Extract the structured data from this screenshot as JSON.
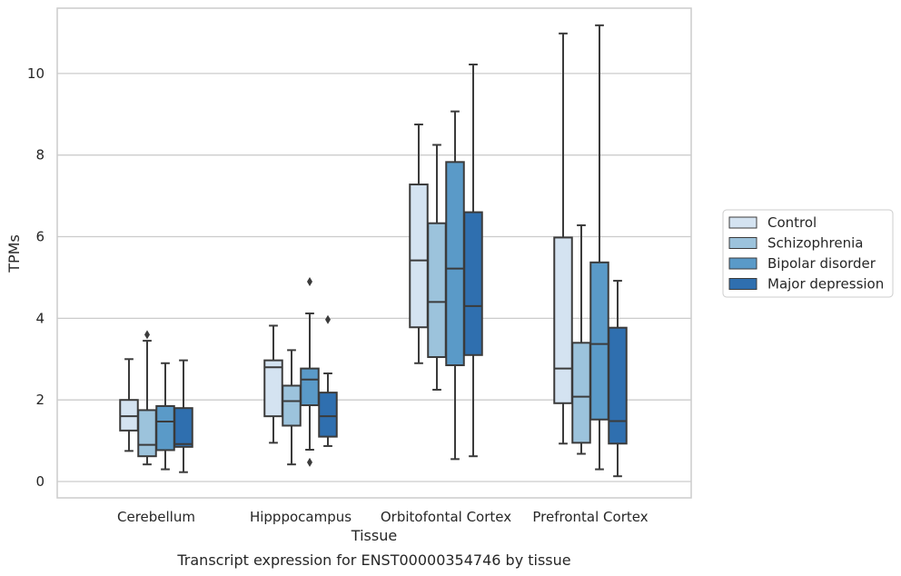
{
  "chart_data": {
    "type": "boxplot",
    "title": "",
    "caption": "Transcript expression for ENST00000354746 by tissue",
    "xlabel": "Tissue",
    "ylabel": "TPMs",
    "ylim": [
      -0.4,
      11.6
    ],
    "yticks": [
      0,
      2,
      4,
      6,
      8,
      10
    ],
    "grid": "horizontal",
    "legend_position": "right",
    "categories": [
      "Cerebellum",
      "Hipppocampus",
      "Orbitofontal Cortex",
      "Prefrontal Cortex"
    ],
    "series": [
      {
        "name": "Control",
        "color": "#d4e3f1",
        "boxes": [
          {
            "whislo": 0.75,
            "q1": 1.25,
            "med": 1.6,
            "q3": 2.0,
            "whishi": 3.0,
            "fliers": []
          },
          {
            "whislo": 0.95,
            "q1": 1.6,
            "med": 2.8,
            "q3": 2.97,
            "whishi": 3.82,
            "fliers": []
          },
          {
            "whislo": 2.9,
            "q1": 3.78,
            "med": 5.42,
            "q3": 7.28,
            "whishi": 8.75,
            "fliers": []
          },
          {
            "whislo": 0.93,
            "q1": 1.92,
            "med": 2.77,
            "q3": 5.98,
            "whishi": 10.98,
            "fliers": []
          }
        ]
      },
      {
        "name": "Schizophrenia",
        "color": "#9cc3dc",
        "boxes": [
          {
            "whislo": 0.42,
            "q1": 0.62,
            "med": 0.9,
            "q3": 1.75,
            "whishi": 3.45,
            "fliers": [
              3.6
            ]
          },
          {
            "whislo": 0.42,
            "q1": 1.37,
            "med": 1.97,
            "q3": 2.35,
            "whishi": 3.22,
            "fliers": []
          },
          {
            "whislo": 2.25,
            "q1": 3.05,
            "med": 4.4,
            "q3": 6.33,
            "whishi": 8.25,
            "fliers": []
          },
          {
            "whislo": 0.68,
            "q1": 0.95,
            "med": 2.08,
            "q3": 3.4,
            "whishi": 6.28,
            "fliers": []
          }
        ]
      },
      {
        "name": "Bipolar disorder",
        "color": "#5a9ac8",
        "boxes": [
          {
            "whislo": 0.3,
            "q1": 0.77,
            "med": 1.47,
            "q3": 1.85,
            "whishi": 2.9,
            "fliers": []
          },
          {
            "whislo": 0.78,
            "q1": 1.87,
            "med": 2.5,
            "q3": 2.77,
            "whishi": 4.12,
            "fliers": [
              4.9,
              0.47
            ]
          },
          {
            "whislo": 0.55,
            "q1": 2.85,
            "med": 5.22,
            "q3": 7.83,
            "whishi": 9.07,
            "fliers": []
          },
          {
            "whislo": 0.3,
            "q1": 1.52,
            "med": 3.37,
            "q3": 5.37,
            "whishi": 11.18,
            "fliers": []
          }
        ]
      },
      {
        "name": "Major depression",
        "color": "#2f6faf",
        "boxes": [
          {
            "whislo": 0.23,
            "q1": 0.85,
            "med": 0.92,
            "q3": 1.8,
            "whishi": 2.97,
            "fliers": []
          },
          {
            "whislo": 0.87,
            "q1": 1.1,
            "med": 1.6,
            "q3": 2.18,
            "whishi": 2.65,
            "fliers": [
              3.97
            ]
          },
          {
            "whislo": 0.62,
            "q1": 3.1,
            "med": 4.3,
            "q3": 6.6,
            "whishi": 10.22,
            "fliers": []
          },
          {
            "whislo": 0.13,
            "q1": 0.93,
            "med": 1.48,
            "q3": 3.77,
            "whishi": 4.92,
            "fliers": []
          }
        ]
      }
    ]
  }
}
